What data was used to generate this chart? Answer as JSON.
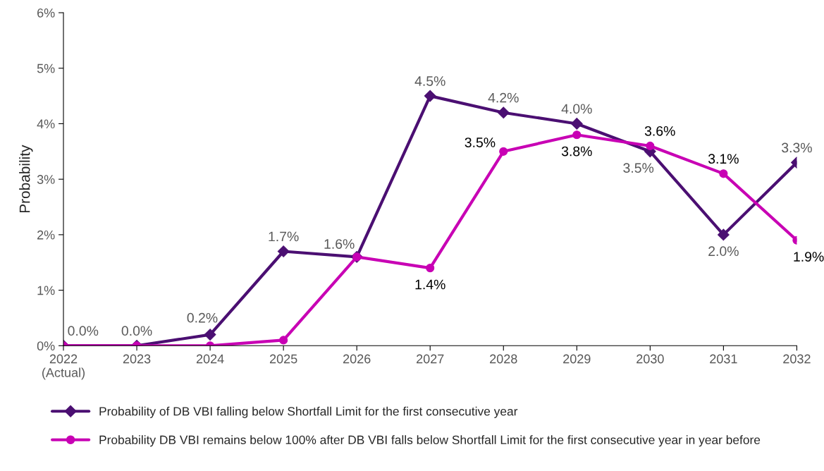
{
  "chart_data": {
    "type": "line",
    "ylabel": "Probability",
    "categories": [
      "2022\n(Actual)",
      "2023",
      "2024",
      "2025",
      "2026",
      "2027",
      "2028",
      "2029",
      "2030",
      "2031",
      "2032"
    ],
    "series": [
      {
        "name": "Probability of DB VBI falling below Shortfall Limit for the first consecutive year",
        "color": "#4b0f72",
        "marker": "diamond",
        "values": [
          0.0,
          0.0,
          0.2,
          1.7,
          1.6,
          4.5,
          4.2,
          4.0,
          3.5,
          2.0,
          3.3
        ],
        "value_labels": [
          "0.0%",
          "0.0%",
          "0.2%",
          "1.7%",
          "1.6%",
          "4.5%",
          "4.2%",
          "4.0%",
          "3.5%",
          "2.0%",
          "3.3%"
        ]
      },
      {
        "name": "Probability DB VBI remains below 100% after DB VBI falls below Shortfall Limit for the first consecutive year in year before",
        "color": "#c800b4",
        "marker": "circle",
        "values": [
          0.0,
          0.0,
          0.0,
          0.1,
          1.6,
          1.4,
          3.5,
          3.8,
          3.6,
          3.1,
          1.9
        ],
        "value_labels": [
          null,
          null,
          null,
          null,
          null,
          "1.4%",
          "3.5%",
          "3.8%",
          "3.6%",
          "3.1%",
          "1.9%"
        ]
      }
    ],
    "ylim": [
      0,
      6
    ],
    "yticks": [
      {
        "value": 0,
        "label": "0%"
      },
      {
        "value": 1,
        "label": "1%"
      },
      {
        "value": 2,
        "label": "2%"
      },
      {
        "value": 3,
        "label": "3%"
      },
      {
        "value": 4,
        "label": "4%"
      },
      {
        "value": 5,
        "label": "5%"
      },
      {
        "value": 6,
        "label": "6%"
      }
    ],
    "grid": false,
    "legend": "bottom",
    "line_style": "solid"
  }
}
